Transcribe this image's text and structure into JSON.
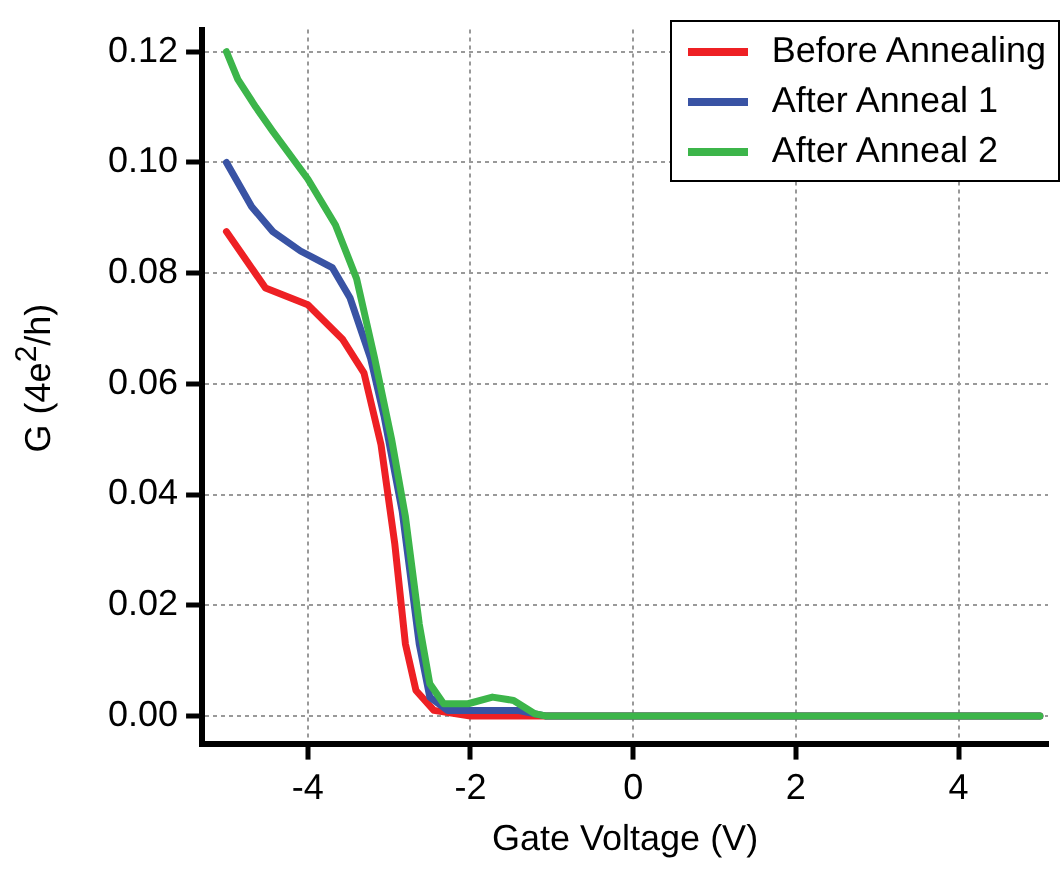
{
  "chart_data": {
    "type": "line",
    "xlabel": "Gate Voltage (V)",
    "ylabel": "G (4e$^{2}$/h)",
    "xlim": [
      -5.3,
      5.1
    ],
    "ylim": [
      -0.005,
      0.124
    ],
    "xticks": [
      -4,
      -2,
      0,
      2,
      4
    ],
    "yticks": [
      {
        "value": 0,
        "label": "0.00"
      },
      {
        "value": 0.02,
        "label": "0.02"
      },
      {
        "value": 0.04,
        "label": "0.04"
      },
      {
        "value": 0.06,
        "label": "0.06"
      },
      {
        "value": 0.08,
        "label": "0.08"
      },
      {
        "value": 0.1,
        "label": "0.10"
      },
      {
        "value": 0.12,
        "label": "0.12"
      }
    ],
    "grid": true,
    "legend": "top right",
    "marker": "none",
    "line_style": "solid",
    "series": [
      {
        "name": "Before Annealing",
        "color": "#ee2024",
        "x": [
          -5,
          -4.52,
          -4,
          -3.57,
          -3.31,
          -3.1,
          -2.93,
          -2.8,
          -2.67,
          -2.45,
          -2,
          -1,
          0,
          5
        ],
        "values": [
          0.0875,
          0.0773,
          0.0743,
          0.068,
          0.062,
          0.049,
          0.031,
          0.013,
          0.0046,
          0.001,
          0,
          0,
          0,
          0
        ]
      },
      {
        "name": "After Anneal 1",
        "color": "#3953a4",
        "x": [
          -5,
          -4.69,
          -4.43,
          -4.09,
          -3.7,
          -3.48,
          -3.23,
          -3.06,
          -2.84,
          -2.63,
          -2.5,
          -2.28,
          -1.42,
          -1.08,
          0,
          5
        ],
        "values": [
          0.1,
          0.092,
          0.0875,
          0.084,
          0.081,
          0.0755,
          0.0647,
          0.054,
          0.037,
          0.013,
          0.0034,
          0.001,
          0.001,
          0,
          0,
          0
        ]
      },
      {
        "name": "After Anneal 2",
        "color": "#3cb54a",
        "x": [
          -5,
          -4.86,
          -4.64,
          -4.43,
          -4,
          -3.66,
          -3.4,
          -3.18,
          -2.97,
          -2.8,
          -2.63,
          -2.5,
          -2.33,
          -2.03,
          -1.73,
          -1.47,
          -1.21,
          -1.08,
          0,
          5
        ],
        "values": [
          0.12,
          0.115,
          0.11,
          0.1056,
          0.097,
          0.0887,
          0.079,
          0.0647,
          0.05,
          0.036,
          0.0166,
          0.0058,
          0.0022,
          0.0022,
          0.0034,
          0.0028,
          0.0004,
          0,
          0,
          0
        ]
      }
    ]
  }
}
